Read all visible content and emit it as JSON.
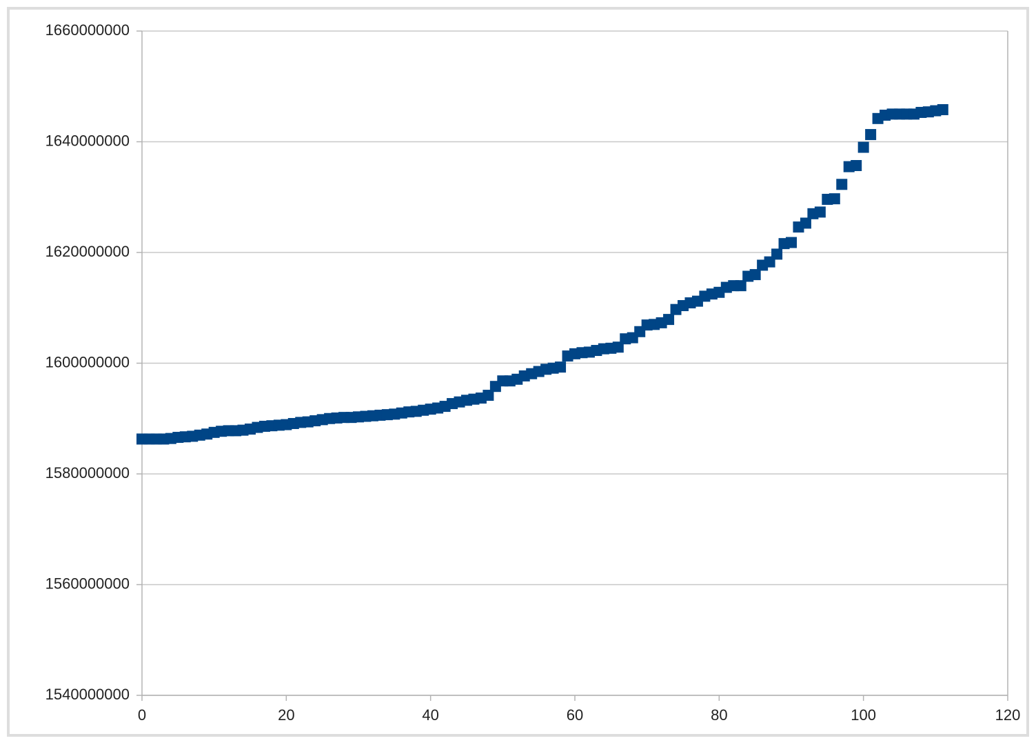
{
  "chart_data": {
    "type": "scatter",
    "x": [
      0,
      1,
      2,
      3,
      4,
      5,
      6,
      7,
      8,
      9,
      10,
      11,
      12,
      13,
      14,
      15,
      16,
      17,
      18,
      19,
      20,
      21,
      22,
      23,
      24,
      25,
      26,
      27,
      28,
      29,
      30,
      31,
      32,
      33,
      34,
      35,
      36,
      37,
      38,
      39,
      40,
      41,
      42,
      43,
      44,
      45,
      46,
      47,
      48,
      49,
      50,
      51,
      52,
      53,
      54,
      55,
      56,
      57,
      58,
      59,
      60,
      61,
      62,
      63,
      64,
      65,
      66,
      67,
      68,
      69,
      70,
      71,
      72,
      73,
      74,
      75,
      76,
      77,
      78,
      79,
      80,
      81,
      82,
      83,
      84,
      85,
      86,
      87,
      88,
      89,
      90,
      91,
      92,
      93,
      94,
      95,
      96,
      97,
      98,
      99,
      100,
      101,
      102,
      103,
      104,
      105,
      106,
      107,
      108,
      109,
      110,
      111
    ],
    "values": [
      1586300000,
      1586300000,
      1586300000,
      1586300000,
      1586400000,
      1586600000,
      1586700000,
      1586800000,
      1587000000,
      1587200000,
      1587500000,
      1587700000,
      1587800000,
      1587800000,
      1587900000,
      1588100000,
      1588400000,
      1588600000,
      1588700000,
      1588800000,
      1588900000,
      1589100000,
      1589300000,
      1589400000,
      1589600000,
      1589800000,
      1590000000,
      1590100000,
      1590200000,
      1590200000,
      1590300000,
      1590400000,
      1590500000,
      1590600000,
      1590700000,
      1590800000,
      1591000000,
      1591200000,
      1591300000,
      1591500000,
      1591700000,
      1591900000,
      1592200000,
      1592700000,
      1593000000,
      1593300000,
      1593500000,
      1593700000,
      1594200000,
      1595800000,
      1596800000,
      1596800000,
      1597100000,
      1597700000,
      1598100000,
      1598500000,
      1598900000,
      1599100000,
      1599300000,
      1601300000,
      1601700000,
      1601900000,
      1602000000,
      1602300000,
      1602600000,
      1602700000,
      1602900000,
      1604400000,
      1604600000,
      1605700000,
      1606900000,
      1607000000,
      1607300000,
      1607900000,
      1609700000,
      1610400000,
      1610900000,
      1611200000,
      1612100000,
      1612500000,
      1612800000,
      1613700000,
      1614000000,
      1614000000,
      1615700000,
      1616000000,
      1617700000,
      1618300000,
      1619700000,
      1621600000,
      1621800000,
      1624600000,
      1625300000,
      1627000000,
      1627300000,
      1629600000,
      1629700000,
      1632300000,
      1635500000,
      1635700000,
      1639000000,
      1641300000,
      1644200000,
      1644800000,
      1645000000,
      1645000000,
      1645000000,
      1645000000,
      1645300000,
      1645400000,
      1645600000,
      1645800000
    ],
    "color": "#004586",
    "xlim": [
      0,
      120
    ],
    "xticks": [
      0,
      20,
      40,
      60,
      80,
      100,
      120
    ],
    "ylim": [
      1540000000,
      1660000000
    ],
    "yticks": [
      1540000000,
      1560000000,
      1580000000,
      1600000000,
      1620000000,
      1640000000,
      1660000000
    ],
    "grid": true
  }
}
